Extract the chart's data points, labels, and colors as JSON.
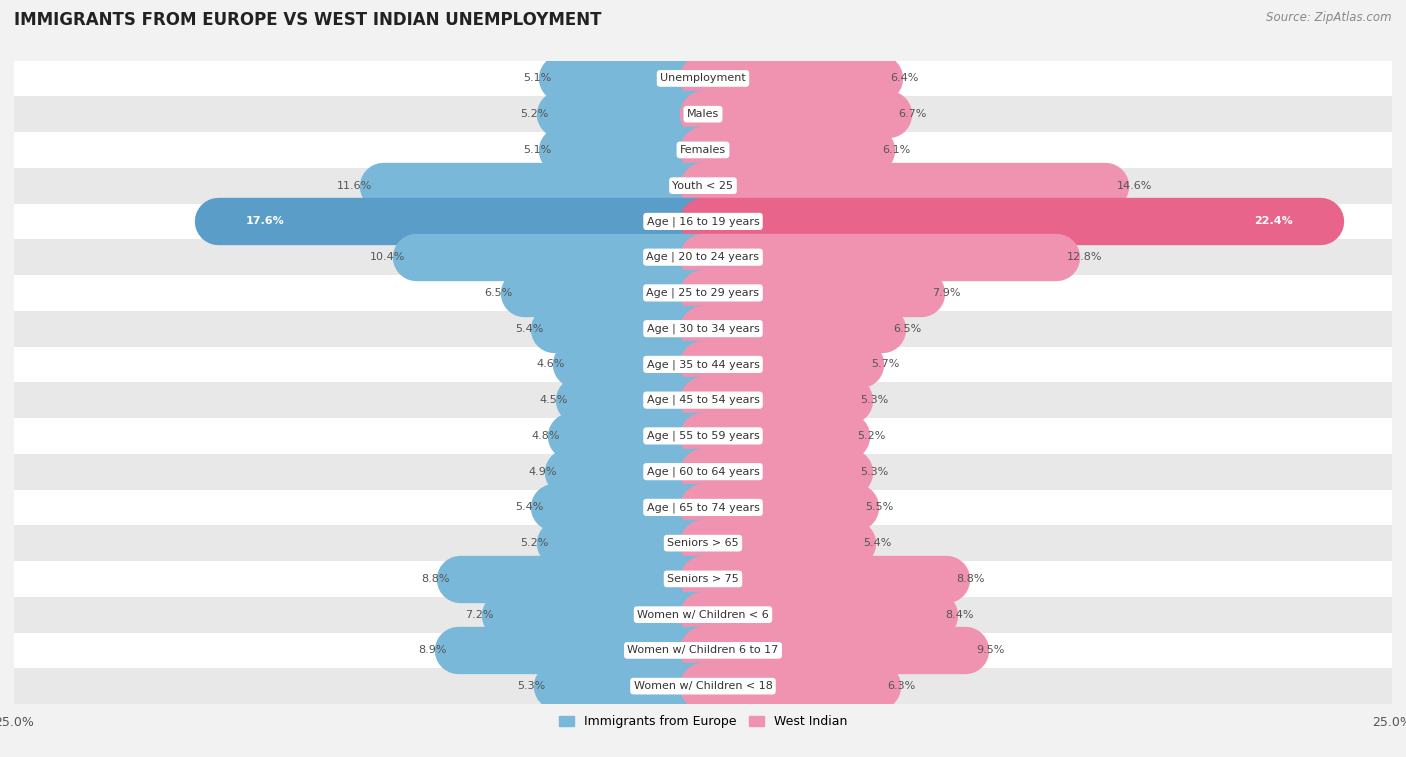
{
  "title": "IMMIGRANTS FROM EUROPE VS WEST INDIAN UNEMPLOYMENT",
  "source": "Source: ZipAtlas.com",
  "categories": [
    "Unemployment",
    "Males",
    "Females",
    "Youth < 25",
    "Age | 16 to 19 years",
    "Age | 20 to 24 years",
    "Age | 25 to 29 years",
    "Age | 30 to 34 years",
    "Age | 35 to 44 years",
    "Age | 45 to 54 years",
    "Age | 55 to 59 years",
    "Age | 60 to 64 years",
    "Age | 65 to 74 years",
    "Seniors > 65",
    "Seniors > 75",
    "Women w/ Children < 6",
    "Women w/ Children 6 to 17",
    "Women w/ Children < 18"
  ],
  "europe_values": [
    5.1,
    5.2,
    5.1,
    11.6,
    17.6,
    10.4,
    6.5,
    5.4,
    4.6,
    4.5,
    4.8,
    4.9,
    5.4,
    5.2,
    8.8,
    7.2,
    8.9,
    5.3
  ],
  "west_indian_values": [
    6.4,
    6.7,
    6.1,
    14.6,
    22.4,
    12.8,
    7.9,
    6.5,
    5.7,
    5.3,
    5.2,
    5.3,
    5.5,
    5.4,
    8.8,
    8.4,
    9.5,
    6.3
  ],
  "europe_color": "#7ab8d9",
  "west_indian_color": "#f093b0",
  "highlight_europe_color": "#5a9dc8",
  "highlight_west_indian_color": "#e8648a",
  "highlight_index": 4,
  "xlim": 25.0,
  "bar_height": 0.62,
  "bg_color": "#f2f2f2",
  "row_colors_even": "#ffffff",
  "row_colors_odd": "#e8e8e8",
  "label_color": "#555555",
  "value_color": "#555555",
  "legend_europe": "Immigrants from Europe",
  "legend_west_indian": "West Indian"
}
